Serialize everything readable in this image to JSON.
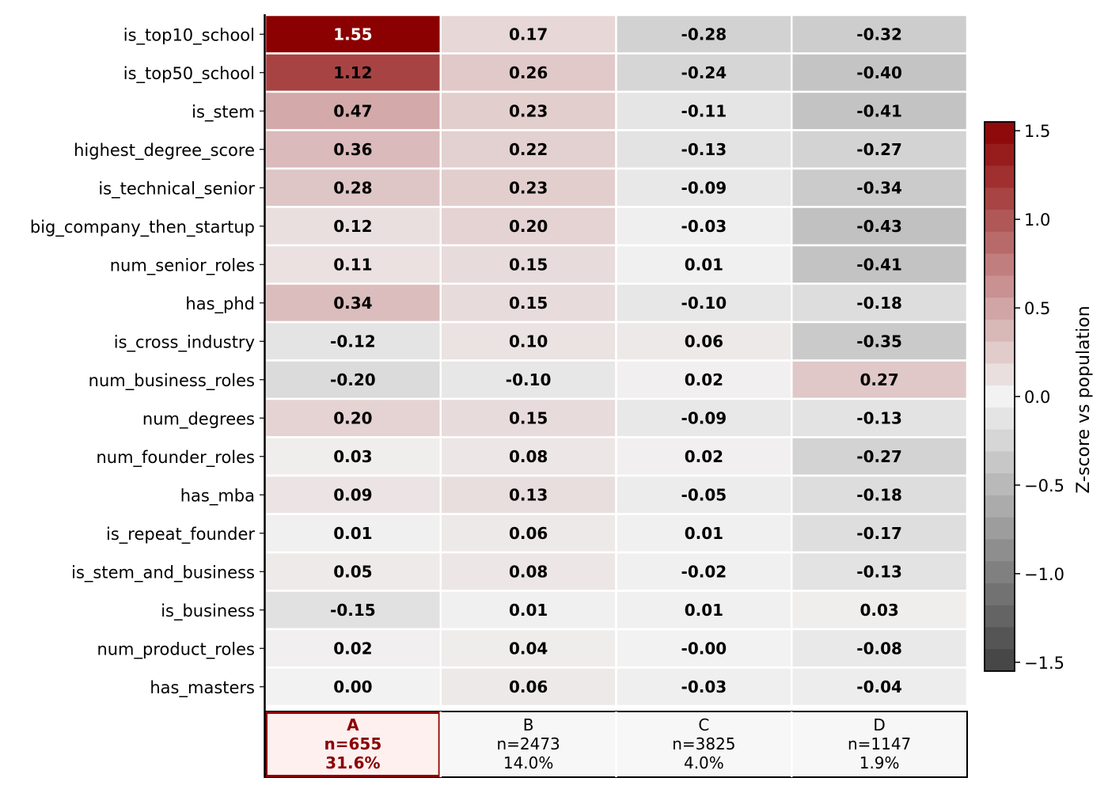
{
  "chart_data": {
    "type": "heatmap",
    "title": "",
    "xlabel": "",
    "ylabel": "",
    "rows": [
      "is_top10_school",
      "is_top50_school",
      "is_stem",
      "highest_degree_score",
      "is_technical_senior",
      "big_company_then_startup",
      "num_senior_roles",
      "has_phd",
      "is_cross_industry",
      "num_business_roles",
      "num_degrees",
      "num_founder_roles",
      "has_mba",
      "is_repeat_founder",
      "is_stem_and_business",
      "is_business",
      "num_product_roles",
      "has_masters"
    ],
    "columns": [
      "A",
      "B",
      "C",
      "D"
    ],
    "values": [
      [
        1.55,
        0.17,
        -0.28,
        -0.32
      ],
      [
        1.12,
        0.26,
        -0.24,
        -0.4
      ],
      [
        0.47,
        0.23,
        -0.11,
        -0.41
      ],
      [
        0.36,
        0.22,
        -0.13,
        -0.27
      ],
      [
        0.28,
        0.23,
        -0.09,
        -0.34
      ],
      [
        0.12,
        0.2,
        -0.03,
        -0.43
      ],
      [
        0.11,
        0.15,
        0.01,
        -0.41
      ],
      [
        0.34,
        0.15,
        -0.1,
        -0.18
      ],
      [
        -0.12,
        0.1,
        0.06,
        -0.35
      ],
      [
        -0.2,
        -0.1,
        0.02,
        0.27
      ],
      [
        0.2,
        0.15,
        -0.09,
        -0.13
      ],
      [
        0.03,
        0.08,
        0.02,
        -0.27
      ],
      [
        0.09,
        0.13,
        -0.05,
        -0.18
      ],
      [
        0.01,
        0.06,
        0.01,
        -0.17
      ],
      [
        0.05,
        0.08,
        -0.02,
        -0.13
      ],
      [
        -0.15,
        0.01,
        0.01,
        0.03
      ],
      [
        0.02,
        0.04,
        -0.0,
        -0.08
      ],
      [
        0.0,
        0.06,
        -0.03,
        -0.04
      ]
    ],
    "cell_labels": [
      [
        "1.55",
        "0.17",
        "-0.28",
        "-0.32"
      ],
      [
        "1.12",
        "0.26",
        "-0.24",
        "-0.40"
      ],
      [
        "0.47",
        "0.23",
        "-0.11",
        "-0.41"
      ],
      [
        "0.36",
        "0.22",
        "-0.13",
        "-0.27"
      ],
      [
        "0.28",
        "0.23",
        "-0.09",
        "-0.34"
      ],
      [
        "0.12",
        "0.20",
        "-0.03",
        "-0.43"
      ],
      [
        "0.11",
        "0.15",
        "0.01",
        "-0.41"
      ],
      [
        "0.34",
        "0.15",
        "-0.10",
        "-0.18"
      ],
      [
        "-0.12",
        "0.10",
        "0.06",
        "-0.35"
      ],
      [
        "-0.20",
        "-0.10",
        "0.02",
        "0.27"
      ],
      [
        "0.20",
        "0.15",
        "-0.09",
        "-0.13"
      ],
      [
        "0.03",
        "0.08",
        "0.02",
        "-0.27"
      ],
      [
        "0.09",
        "0.13",
        "-0.05",
        "-0.18"
      ],
      [
        "0.01",
        "0.06",
        "0.01",
        "-0.17"
      ],
      [
        "0.05",
        "0.08",
        "-0.02",
        "-0.13"
      ],
      [
        "-0.15",
        "0.01",
        "0.01",
        "0.03"
      ],
      [
        "0.02",
        "0.04",
        "-0.00",
        "-0.08"
      ],
      [
        "0.00",
        "0.06",
        "-0.03",
        "-0.04"
      ]
    ],
    "clusters": [
      {
        "name": "A",
        "n": "n=655",
        "pct": "31.6%",
        "highlighted": true
      },
      {
        "name": "B",
        "n": "n=2473",
        "pct": "14.0%",
        "highlighted": false
      },
      {
        "name": "C",
        "n": "n=3825",
        "pct": "4.0%",
        "highlighted": false
      },
      {
        "name": "D",
        "n": "n=1147",
        "pct": "1.9%",
        "highlighted": false
      }
    ],
    "colorbar": {
      "label": "Z-score vs population",
      "range": [
        -1.55,
        1.55
      ],
      "ticks": [
        -1.5,
        -1.0,
        -0.5,
        0.0,
        0.5,
        1.0,
        1.5
      ],
      "tick_labels": [
        "−1.5",
        "−1.0",
        "−0.5",
        "0.0",
        "0.5",
        "1.0",
        "1.5"
      ],
      "steps": 25,
      "colors": {
        "low": "#404040",
        "mid": "#f2f2f2",
        "high": "#8b0000"
      }
    },
    "colors": {
      "highlight_text": "#8b0000",
      "highlight_bg": "#fff0f0",
      "highlight_border": "#8b0000",
      "footer_bg": "#f7f7f7"
    }
  }
}
